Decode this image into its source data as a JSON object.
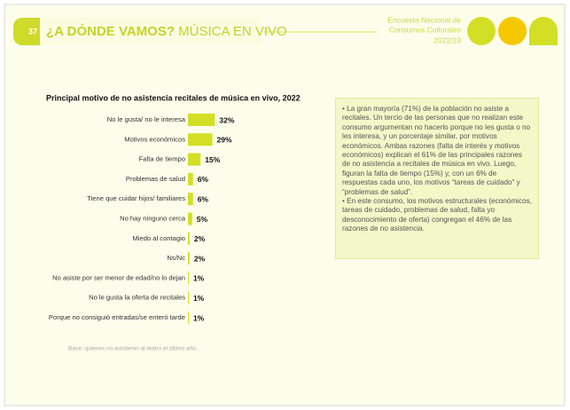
{
  "header": {
    "page_number": "37",
    "title_bold": "¿A DÓNDE VAMOS?",
    "title_light": "MÚSICA EN VIVO",
    "survey_lines": [
      "Encuesta Nacional de",
      "Consumos Culturales",
      "2022/23"
    ]
  },
  "chart_data": {
    "type": "bar",
    "orientation": "horizontal",
    "title": "Principal motivo de no asistencia recitales de música en vivo, 2022",
    "categories": [
      "No le gusta/ no le interesa",
      "Motivos económicos",
      "Falta de tiempo",
      "Problemas de salud",
      "Tiene que cuidar hijos/ familiares",
      "No hay ninguno cerca",
      "Miedo al contagio",
      "Ns/Nc",
      "No asiste por ser menor de edad/no lo dejan",
      "No le gusta la oferta de recitales",
      "Porque no consiguió entradas/se enteró tarde"
    ],
    "values": [
      32,
      29,
      15,
      6,
      6,
      5,
      2,
      2,
      1,
      1,
      1
    ],
    "value_labels": [
      "32%",
      "29%",
      "15%",
      "6%",
      "6%",
      "5%",
      "2%",
      "2%",
      "1%",
      "1%",
      "1%"
    ],
    "color": "#d3df25"
  },
  "text_box": {
    "paragraphs": [
      "• La gran mayoría (71%) de la población no asiste a recitales. Un tercio de las personas que no realizan este consumo argumentan no hacerlo porque no les gusta o no les interesa, y un porcentaje similar, por motivos económicos. Ambas razones (falta de interés y motivos económicos) explican el 61% de las principales razones de no asistencia a recitales de música en vivo. Luego, figuran la falta de tiempo (15%) y, con un 6% de respuestas cada uno, los motivos “tareas de cuidado” y “problemas de salud”.",
      "• En este consumo, los motivos estructurales (económicos, tareas de cuidado, problemas de salud, falta yo desconocimiento de oferta) congregan el 46% de las razones de no asistencia."
    ]
  },
  "footnote": "Base: quienes no asistieron al teatro el último año."
}
